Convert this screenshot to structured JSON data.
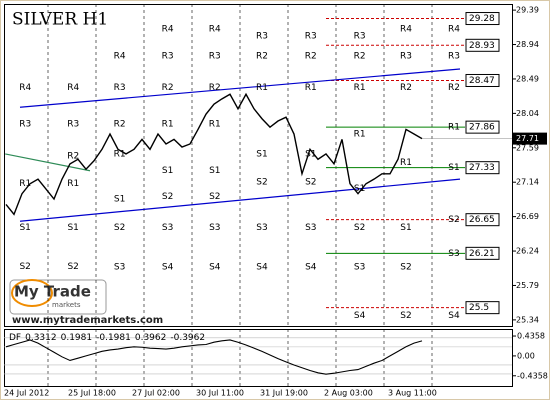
{
  "chart_data": {
    "type": "line",
    "title": "SILVER H1",
    "categories": [
      null,
      null,
      null,
      "24 Jul 2012",
      null,
      null,
      null,
      null,
      null,
      null,
      null,
      "25 Jul 18:00",
      null,
      null,
      null,
      null,
      null,
      null,
      null,
      "27 Jul 02:00",
      null,
      null,
      null,
      null,
      null,
      null,
      null,
      "30 Jul 11:00",
      null,
      null,
      null,
      null,
      null,
      null,
      null,
      "31 Jul 19:00",
      null,
      null,
      null,
      null,
      null,
      null,
      null,
      "2 Aug 03:00",
      null,
      null,
      null,
      null,
      null,
      null,
      null,
      "3 Aug 11:00",
      null
    ],
    "series": [
      {
        "name": "SILVER",
        "color": "#000000",
        "values": [
          26.85,
          26.72,
          26.99,
          27.12,
          27.18,
          27.05,
          26.92,
          27.18,
          27.38,
          27.44,
          27.31,
          27.42,
          27.57,
          27.77,
          27.57,
          27.51,
          27.57,
          27.7,
          27.57,
          27.77,
          27.64,
          27.7,
          27.6,
          27.64,
          27.83,
          28.03,
          28.16,
          28.23,
          28.29,
          28.1,
          28.29,
          28.1,
          27.97,
          27.86,
          27.94,
          27.99,
          27.77,
          27.25,
          27.57,
          27.44,
          27.51,
          27.38,
          27.7,
          27.12,
          26.99,
          27.12,
          27.18,
          27.25,
          27.25,
          27.44,
          27.83,
          27.77,
          27.71
        ]
      }
    ],
    "ylim": [
      25.26,
      29.47
    ],
    "yticks": [
      25.34,
      25.79,
      26.24,
      26.69,
      27.14,
      27.59,
      28.04,
      28.49,
      28.94,
      29.39
    ],
    "current_price": 27.71,
    "levels": [
      {
        "value": 29.28,
        "color": "#cc0000",
        "style": "dashed"
      },
      {
        "value": 28.93,
        "color": "#cc0000",
        "style": "dashed"
      },
      {
        "value": 28.47,
        "color": "#cc0000",
        "style": "dashed"
      },
      {
        "value": 27.86,
        "color": "#008000",
        "style": "solid"
      },
      {
        "value": 27.33,
        "color": "#008000",
        "style": "solid"
      },
      {
        "value": 26.65,
        "color": "#cc0000",
        "style": "dashed"
      },
      {
        "value": 26.21,
        "color": "#008000",
        "style": "solid"
      },
      {
        "value": 25.5,
        "color": "#cc0000",
        "style": "dashed"
      }
    ],
    "trendlines": [
      {
        "color": "#0000cc",
        "x": [
          1.75,
          56.75
        ],
        "y": [
          28.12,
          28.62
        ]
      },
      {
        "color": "#0000cc",
        "x": [
          1.75,
          56.75
        ],
        "y": [
          26.63,
          27.18
        ]
      },
      {
        "color": "#2e8b57",
        "x": [
          -0.1,
          10.5
        ],
        "y": [
          27.51,
          27.29
        ]
      }
    ],
    "pivots": [
      {
        "x": 2.4,
        "labels": [
          "R4",
          "R3",
          "R1",
          "S1",
          "S2"
        ],
        "values": [
          28.38,
          27.9,
          27.12,
          26.55,
          26.04
        ]
      },
      {
        "x": 8.4,
        "labels": [
          "R4",
          "R3",
          "R2",
          "R1",
          "S1",
          "S2"
        ],
        "values": [
          28.38,
          27.9,
          27.48,
          27.12,
          26.55,
          26.04
        ]
      },
      {
        "x": 14.2,
        "labels": [
          "R4",
          "R3",
          "R2",
          "R1",
          "S1",
          "S2",
          "S3"
        ],
        "values": [
          28.79,
          28.38,
          27.9,
          27.51,
          26.92,
          26.55,
          26.03
        ]
      },
      {
        "x": 20.2,
        "labels": [
          "R4",
          "R3",
          "R2",
          "R1",
          "S1",
          "S2",
          "S3",
          "S4"
        ],
        "values": [
          29.14,
          28.79,
          28.38,
          27.9,
          27.29,
          26.95,
          26.55,
          26.03
        ]
      },
      {
        "x": 26.1,
        "labels": [
          "R4",
          "R3",
          "R2",
          "R1",
          "S1",
          "S2",
          "S3",
          "S4"
        ],
        "values": [
          29.14,
          28.79,
          28.38,
          27.9,
          27.29,
          26.95,
          26.55,
          26.03
        ]
      },
      {
        "x": 32.0,
        "labels": [
          "R3",
          "R2",
          "R1",
          "S1",
          "S2",
          "S3",
          "S4"
        ],
        "values": [
          29.05,
          28.79,
          28.38,
          27.51,
          27.14,
          26.55,
          26.03
        ]
      },
      {
        "x": 38.1,
        "labels": [
          "R3",
          "R2",
          "R1",
          "S1",
          "S2",
          "S3",
          "S4"
        ],
        "values": [
          29.05,
          28.79,
          28.38,
          27.51,
          27.14,
          26.55,
          26.03
        ]
      },
      {
        "x": 44.2,
        "labels": [
          "R3",
          "R2",
          "R1",
          "R1",
          "S1",
          "S2",
          "S3",
          "S4"
        ],
        "values": [
          29.05,
          28.79,
          28.38,
          27.77,
          27.06,
          26.55,
          26.03,
          25.4
        ]
      },
      {
        "x": 50.0,
        "labels": [
          "R4",
          "R3",
          "R2",
          "R1",
          "S1",
          "S2",
          "S2"
        ],
        "values": [
          29.14,
          28.79,
          28.38,
          27.4,
          26.55,
          26.03,
          25.4
        ]
      },
      {
        "x": 56.0,
        "labels": [
          "R4",
          "R3",
          "R2",
          "R1",
          "S1",
          "S2",
          "S3",
          "S4"
        ],
        "values": [
          29.14,
          28.79,
          28.38,
          27.86,
          27.33,
          26.65,
          26.21,
          25.4
        ]
      }
    ],
    "indicator": {
      "name": "DF",
      "header_values": [
        0.3312,
        0.1981,
        -0.1981,
        0.3962,
        -0.3962
      ],
      "color": "#000000",
      "ylim": [
        -0.66,
        0.59
      ],
      "yticks": [
        0.4358,
        {
          "value": 0,
          "label": "0.00"
        },
        -0.4358
      ],
      "values": [
        0.2,
        0.25,
        0.3,
        0.35,
        0.28,
        0.18,
        0.08,
        -0.02,
        -0.1,
        -0.05,
        0.0,
        0.05,
        0.1,
        0.13,
        0.15,
        0.18,
        0.2,
        0.19,
        0.17,
        0.16,
        0.15,
        0.17,
        0.2,
        0.22,
        0.24,
        0.25,
        0.3,
        0.33,
        0.35,
        0.3,
        0.24,
        0.17,
        0.1,
        0.02,
        -0.06,
        -0.13,
        -0.2,
        -0.26,
        -0.32,
        -0.37,
        -0.4,
        -0.38,
        -0.35,
        -0.32,
        -0.3,
        -0.23,
        -0.16,
        -0.1,
        0.0,
        0.1,
        0.2,
        0.28,
        0.33
      ]
    },
    "branding": {
      "name": "My Trade",
      "sub": "markets",
      "url": "www.mytrademarkets.com"
    }
  }
}
